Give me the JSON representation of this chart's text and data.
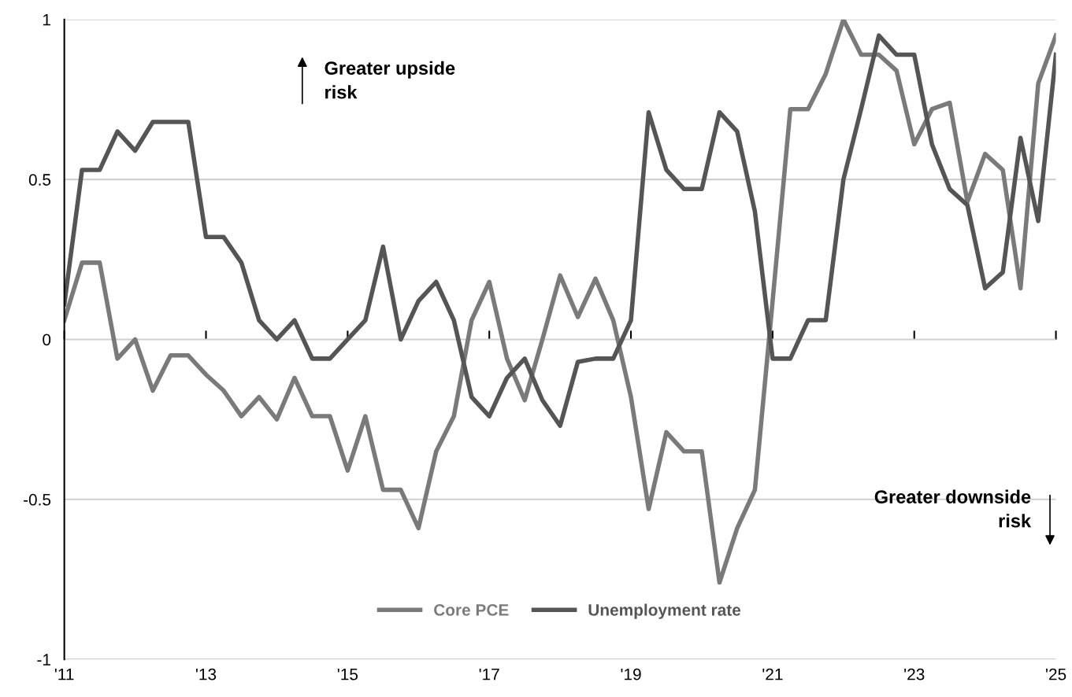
{
  "chart_data": {
    "type": "line",
    "x": [
      2011,
      2011.25,
      2011.5,
      2011.75,
      2012,
      2012.25,
      2012.5,
      2012.75,
      2013,
      2013.25,
      2013.5,
      2013.75,
      2014,
      2014.25,
      2014.5,
      2014.75,
      2015,
      2015.25,
      2015.5,
      2015.75,
      2016,
      2016.25,
      2016.5,
      2016.75,
      2017,
      2017.25,
      2017.5,
      2017.75,
      2018,
      2018.25,
      2018.5,
      2018.75,
      2019,
      2019.25,
      2019.5,
      2019.75,
      2020,
      2020.25,
      2020.5,
      2020.75,
      2021,
      2021.25,
      2021.5,
      2021.75,
      2022,
      2022.25,
      2022.5,
      2022.75,
      2023,
      2023.25,
      2023.5,
      2023.75,
      2024,
      2024.25,
      2024.5,
      2024.75,
      2025
    ],
    "series": [
      {
        "name": "Core PCE",
        "color": "#7a7a7a",
        "values": [
          0.06,
          0.24,
          0.24,
          -0.06,
          0.0,
          -0.16,
          -0.05,
          -0.05,
          -0.11,
          -0.16,
          -0.24,
          -0.18,
          -0.25,
          -0.12,
          -0.24,
          -0.24,
          -0.41,
          -0.24,
          -0.47,
          -0.47,
          -0.59,
          -0.35,
          -0.24,
          0.06,
          0.18,
          -0.06,
          -0.19,
          0.0,
          0.2,
          0.07,
          0.19,
          0.06,
          -0.18,
          -0.53,
          -0.29,
          -0.35,
          -0.35,
          -0.76,
          -0.59,
          -0.47,
          0.12,
          0.72,
          0.72,
          0.83,
          1.0,
          0.89,
          0.89,
          0.84,
          0.61,
          0.72,
          0.74,
          0.43,
          0.58,
          0.53,
          0.16,
          0.8,
          0.95
        ]
      },
      {
        "name": "Unemployment rate",
        "color": "#555555",
        "values": [
          0.11,
          0.53,
          0.53,
          0.65,
          0.59,
          0.68,
          0.68,
          0.68,
          0.32,
          0.32,
          0.24,
          0.06,
          0.0,
          0.06,
          -0.06,
          -0.06,
          0.0,
          0.06,
          0.29,
          0.0,
          0.12,
          0.18,
          0.06,
          -0.18,
          -0.24,
          -0.12,
          -0.06,
          -0.19,
          -0.27,
          -0.07,
          -0.06,
          -0.06,
          0.06,
          0.71,
          0.53,
          0.47,
          0.47,
          0.71,
          0.65,
          0.4,
          -0.06,
          -0.06,
          0.06,
          0.06,
          0.5,
          0.72,
          0.95,
          0.89,
          0.89,
          0.61,
          0.47,
          0.42,
          0.16,
          0.21,
          0.63,
          0.37,
          0.89
        ]
      }
    ],
    "xlim": [
      2011,
      2025
    ],
    "xticks": [
      {
        "value": 2011,
        "label": "'11"
      },
      {
        "value": 2013,
        "label": "'13"
      },
      {
        "value": 2015,
        "label": "'15"
      },
      {
        "value": 2017,
        "label": "'17"
      },
      {
        "value": 2019,
        "label": "'19"
      },
      {
        "value": 2021,
        "label": "'21"
      },
      {
        "value": 2023,
        "label": "'23"
      },
      {
        "value": 2025,
        "label": "'25"
      }
    ],
    "ylim": [
      -1,
      1
    ],
    "yticks": [
      {
        "value": -1,
        "label": "-1"
      },
      {
        "value": -0.5,
        "label": "-0.5"
      },
      0,
      0.5,
      1
    ],
    "grid": "y",
    "legend": "bottom",
    "marker": "none",
    "line_style": "solid",
    "annotations": [
      "Greater upside\nrisk",
      "Greater downside\nrisk"
    ]
  }
}
